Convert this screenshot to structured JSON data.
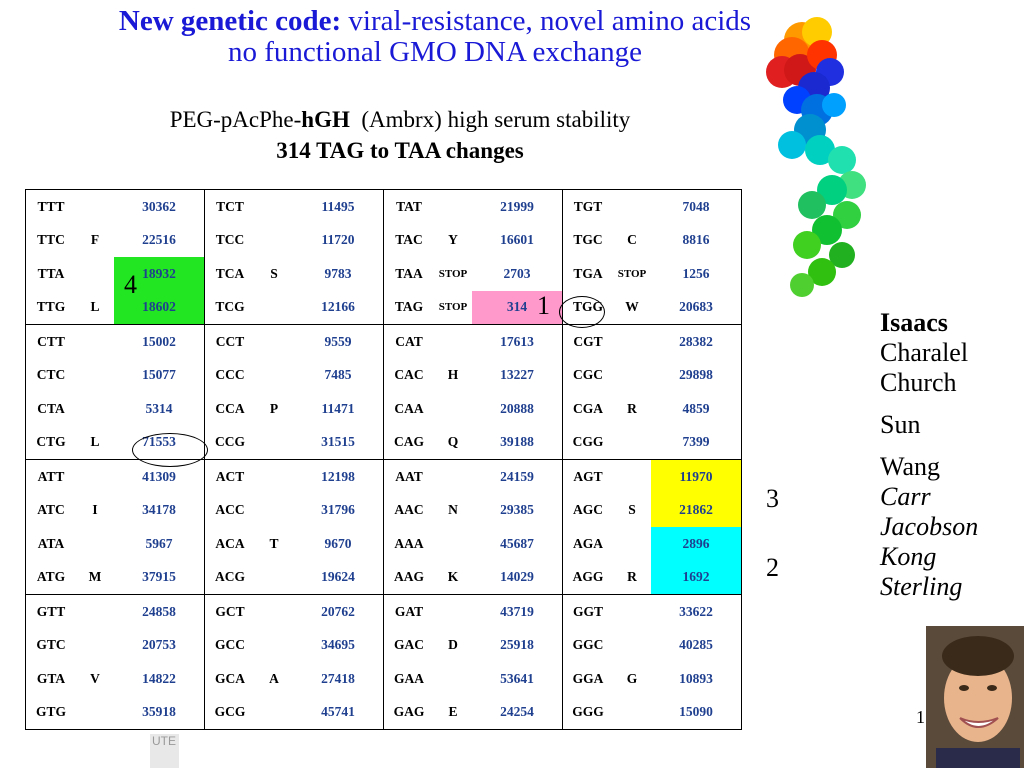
{
  "title": {
    "bold": "New genetic code:",
    "rest": "viral-resistance, novel amino acids",
    "line2": "no functional GMO DNA exchange"
  },
  "subtitle": {
    "prefix": "PEG-pAcPhe-",
    "bold": "hGH",
    "suffix": "(Ambrx) high serum stability"
  },
  "subtitle2": "314 TAG to TAA changes",
  "markers": {
    "m1": "1",
    "m2": "2",
    "m3": "3",
    "m4": "4"
  },
  "names": [
    "Isaacs",
    "Charalel",
    "Church",
    "Sun",
    "Wang",
    "Carr",
    "Jacobson",
    "Kong",
    "Sterling"
  ],
  "page_number": "1",
  "footer_text": "UTE",
  "colors": {
    "title": "#1a1ad6",
    "numbers": "#1f3f8f",
    "green": "#22e622",
    "pink": "#ff99cc",
    "yellow": "#ffff00",
    "cyan": "#00ffff"
  },
  "table": {
    "rows": [
      [
        [
          "TTT",
          "",
          "30362"
        ],
        [
          "TCT",
          "",
          "11495"
        ],
        [
          "TAT",
          "",
          "21999"
        ],
        [
          "TGT",
          "",
          "7048"
        ]
      ],
      [
        [
          "TTC",
          "F",
          "22516"
        ],
        [
          "TCC",
          "",
          "11720"
        ],
        [
          "TAC",
          "Y",
          "16601"
        ],
        [
          "TGC",
          "C",
          "8816"
        ]
      ],
      [
        [
          "TTA",
          "",
          "18932"
        ],
        [
          "TCA",
          "S",
          "9783"
        ],
        [
          "TAA",
          "STOP",
          "2703"
        ],
        [
          "TGA",
          "STOP",
          "1256"
        ]
      ],
      [
        [
          "TTG",
          "L",
          "18602"
        ],
        [
          "TCG",
          "",
          "12166"
        ],
        [
          "TAG",
          "STOP",
          "314"
        ],
        [
          "TGG",
          "W",
          "20683"
        ]
      ],
      [
        [
          "CTT",
          "",
          "15002"
        ],
        [
          "CCT",
          "",
          "9559"
        ],
        [
          "CAT",
          "",
          "17613"
        ],
        [
          "CGT",
          "",
          "28382"
        ]
      ],
      [
        [
          "CTC",
          "",
          "15077"
        ],
        [
          "CCC",
          "",
          "7485"
        ],
        [
          "CAC",
          "H",
          "13227"
        ],
        [
          "CGC",
          "",
          "29898"
        ]
      ],
      [
        [
          "CTA",
          "",
          "5314"
        ],
        [
          "CCA",
          "P",
          "11471"
        ],
        [
          "CAA",
          "",
          "20888"
        ],
        [
          "CGA",
          "R",
          "4859"
        ]
      ],
      [
        [
          "CTG",
          "L",
          "71553"
        ],
        [
          "CCG",
          "",
          "31515"
        ],
        [
          "CAG",
          "Q",
          "39188"
        ],
        [
          "CGG",
          "",
          "7399"
        ]
      ],
      [
        [
          "ATT",
          "",
          "41309"
        ],
        [
          "ACT",
          "",
          "12198"
        ],
        [
          "AAT",
          "",
          "24159"
        ],
        [
          "AGT",
          "",
          "11970"
        ]
      ],
      [
        [
          "ATC",
          "I",
          "34178"
        ],
        [
          "ACC",
          "",
          "31796"
        ],
        [
          "AAC",
          "N",
          "29385"
        ],
        [
          "AGC",
          "S",
          "21862"
        ]
      ],
      [
        [
          "ATA",
          "",
          "5967"
        ],
        [
          "ACA",
          "T",
          "9670"
        ],
        [
          "AAA",
          "",
          "45687"
        ],
        [
          "AGA",
          "",
          "2896"
        ]
      ],
      [
        [
          "ATG",
          "M",
          "37915"
        ],
        [
          "ACG",
          "",
          "19624"
        ],
        [
          "AAG",
          "K",
          "14029"
        ],
        [
          "AGG",
          "R",
          "1692"
        ]
      ],
      [
        [
          "GTT",
          "",
          "24858"
        ],
        [
          "GCT",
          "",
          "20762"
        ],
        [
          "GAT",
          "",
          "43719"
        ],
        [
          "GGT",
          "",
          "33622"
        ]
      ],
      [
        [
          "GTC",
          "",
          "20753"
        ],
        [
          "GCC",
          "",
          "34695"
        ],
        [
          "GAC",
          "D",
          "25918"
        ],
        [
          "GGC",
          "",
          "40285"
        ]
      ],
      [
        [
          "GTA",
          "V",
          "14822"
        ],
        [
          "GCA",
          "A",
          "27418"
        ],
        [
          "GAA",
          "",
          "53641"
        ],
        [
          "GGA",
          "G",
          "10893"
        ]
      ],
      [
        [
          "GTG",
          "",
          "35918"
        ],
        [
          "GCG",
          "",
          "45741"
        ],
        [
          "GAG",
          "E",
          "24254"
        ],
        [
          "GGG",
          "",
          "15090"
        ]
      ]
    ]
  }
}
